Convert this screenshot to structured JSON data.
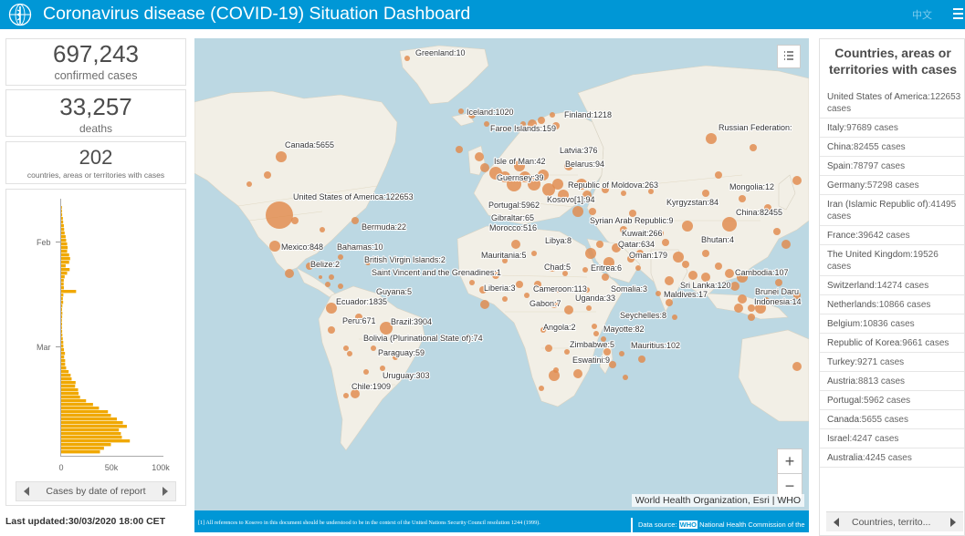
{
  "header": {
    "title": "Coronavirus disease (COVID-19) Situation Dashboard",
    "lang_label": "中文",
    "logo_icon": "who-logo-icon",
    "menu_icon": "hamburger-menu-icon",
    "bg_color": "#0097d6"
  },
  "stats": {
    "confirmed_value": "697,243",
    "confirmed_label": "confirmed cases",
    "deaths_value": "33,257",
    "deaths_label": "deaths",
    "countries_value": "202",
    "countries_label": "countries, areas or territories with cases"
  },
  "chart_data": {
    "type": "bar",
    "orientation": "horizontal",
    "title": "",
    "ylabel": "",
    "xlabel": "",
    "y_tick_labels": [
      "Feb",
      "Mar"
    ],
    "x_tick_labels": [
      "0",
      "50k",
      "100k"
    ],
    "xlim": [
      0,
      100000
    ],
    "bar_color": "#f0a800",
    "grid": false,
    "dates_from_top": "2020-01-22 to 2020-03-29 (daily)",
    "values": [
      600,
      800,
      1000,
      1700,
      2000,
      2700,
      3000,
      3500,
      4500,
      5000,
      6000,
      6500,
      6000,
      8000,
      9000,
      8000,
      4500,
      8500,
      6000,
      3500,
      2600,
      2500,
      2700,
      15000,
      2200,
      1700,
      2000,
      1200,
      900,
      1200,
      1000,
      600,
      900,
      800,
      1000,
      1200,
      1600,
      2100,
      2200,
      2800,
      3800,
      3000,
      4000,
      4000,
      5000,
      7500,
      9500,
      10500,
      14500,
      14000,
      17000,
      17500,
      19000,
      25000,
      32000,
      38000,
      47000,
      50000,
      56000,
      62000,
      66000,
      58000,
      60000,
      61000,
      69000,
      50000,
      43000,
      39000
    ]
  },
  "chart_pager": {
    "label": "Cases by date of report",
    "prev_icon": "chevron-left-icon",
    "next_icon": "chevron-right-icon"
  },
  "last_updated": "Last updated:30/03/2020 18:00 CET",
  "map": {
    "attribution": "World Health Organization, Esri | WHO",
    "footnote": "[1] All references to Kosovo in this document should be understood to be in the context of the United Nations Security Council resolution 1244 (1999).",
    "data_source_prefix": "Data source:",
    "data_source_who": "WHO",
    "data_source_suffix": "National Health Commission of the",
    "zoom_in": "+",
    "zoom_out": "−",
    "legend_icon": "legend-list-icon",
    "bubble_color": "#e08a4c",
    "ocean_color": "#bcd8e3",
    "land_color": "#f2efe6",
    "labels": [
      "Greenland:10",
      "Iceland:1020",
      "Faroe Islands:159",
      "Finland:1218",
      "Russian Federation:",
      "Canada:5655",
      "Latvia:376",
      "Isle of Man:42",
      "Belarus:94",
      "Guernsey:39",
      "Republic of Moldova:263",
      "Mongolia:12",
      "United States of America:122653",
      "Portugal:5962",
      "Kosovo[1]:94",
      "Kyrgyzstan:84",
      "Gibraltar:65",
      "China:82455",
      "Morocco:516",
      "Syrian Arab Republic:9",
      "Bermuda:22",
      "Kuwait:266",
      "Libya:8",
      "Qatar:634",
      "Bhutan:4",
      "Mexico:848",
      "Bahamas:10",
      "Oman:179",
      "Mauritania:5",
      "Belize:2",
      "British Virgin Islands:2",
      "Chad:5",
      "Eritrea:6",
      "Cambodia:107",
      "Saint Vincent and the Grenadines:1",
      "Sri Lanka:120",
      "Brunei Daru",
      "Liberia:3",
      "Cameroon:113",
      "Somalia:3",
      "Maldives:17",
      "Guyana:5",
      "Indonesia:14",
      "Ecuador:1835",
      "Gabon:7",
      "Uganda:33",
      "Seychelles:8",
      "Peru:671",
      "Brazil:3904",
      "Angola:2",
      "Mayotte:82",
      "Bolivia (Plurinational State of):74",
      "Zimbabwe:5",
      "Mauritius:102",
      "Paraguay:59",
      "Eswatini:9",
      "Uruguay:303",
      "Chile:1909"
    ]
  },
  "list": {
    "title": "Countries, areas or territories with cases",
    "items": [
      {
        "country": "United States of America",
        "value": ":122653",
        "unit": " cases"
      },
      {
        "country": "Italy",
        "value": ":97689",
        "unit": " cases"
      },
      {
        "country": "China",
        "value": ":82455",
        "unit": " cases"
      },
      {
        "country": "Spain",
        "value": ":78797",
        "unit": " cases"
      },
      {
        "country": "Germany",
        "value": ":57298",
        "unit": " cases"
      },
      {
        "country": "Iran (Islamic Republic of)",
        "value": ":41495",
        "unit": " cases"
      },
      {
        "country": "France",
        "value": ":39642",
        "unit": " cases"
      },
      {
        "country": "The United Kingdom",
        "value": ":19526",
        "unit": " cases"
      },
      {
        "country": "Switzerland",
        "value": ":14274",
        "unit": " cases"
      },
      {
        "country": "Netherlands",
        "value": ":10866",
        "unit": " cases"
      },
      {
        "country": "Belgium",
        "value": ":10836",
        "unit": " cases"
      },
      {
        "country": "Republic of Korea",
        "value": ":9661",
        "unit": " cases"
      },
      {
        "country": "Turkey",
        "value": ":9271",
        "unit": " cases"
      },
      {
        "country": "Austria",
        "value": ":8813",
        "unit": " cases"
      },
      {
        "country": "Portugal",
        "value": ":5962",
        "unit": " cases"
      },
      {
        "country": "Canada",
        "value": ":5655",
        "unit": " cases"
      },
      {
        "country": "Israel",
        "value": ":4247",
        "unit": " cases"
      },
      {
        "country": "Australia",
        "value": ":4245",
        "unit": " cases"
      }
    ],
    "pager_label": "Countries, territo...",
    "prev_icon": "chevron-left-icon",
    "next_icon": "chevron-right-icon"
  }
}
